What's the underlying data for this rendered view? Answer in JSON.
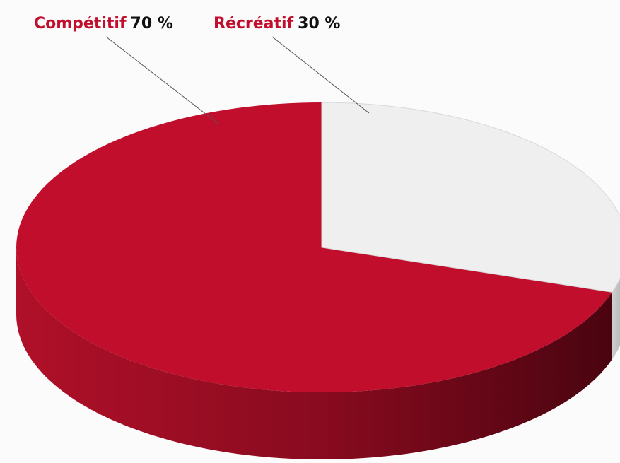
{
  "chart_data": {
    "type": "pie",
    "categories": [
      "Compétitif",
      "Récréatif"
    ],
    "values": [
      70,
      30
    ],
    "value_labels": [
      "70 %",
      "30 %"
    ],
    "colors": [
      "#c20e2d",
      "#efefef"
    ]
  }
}
